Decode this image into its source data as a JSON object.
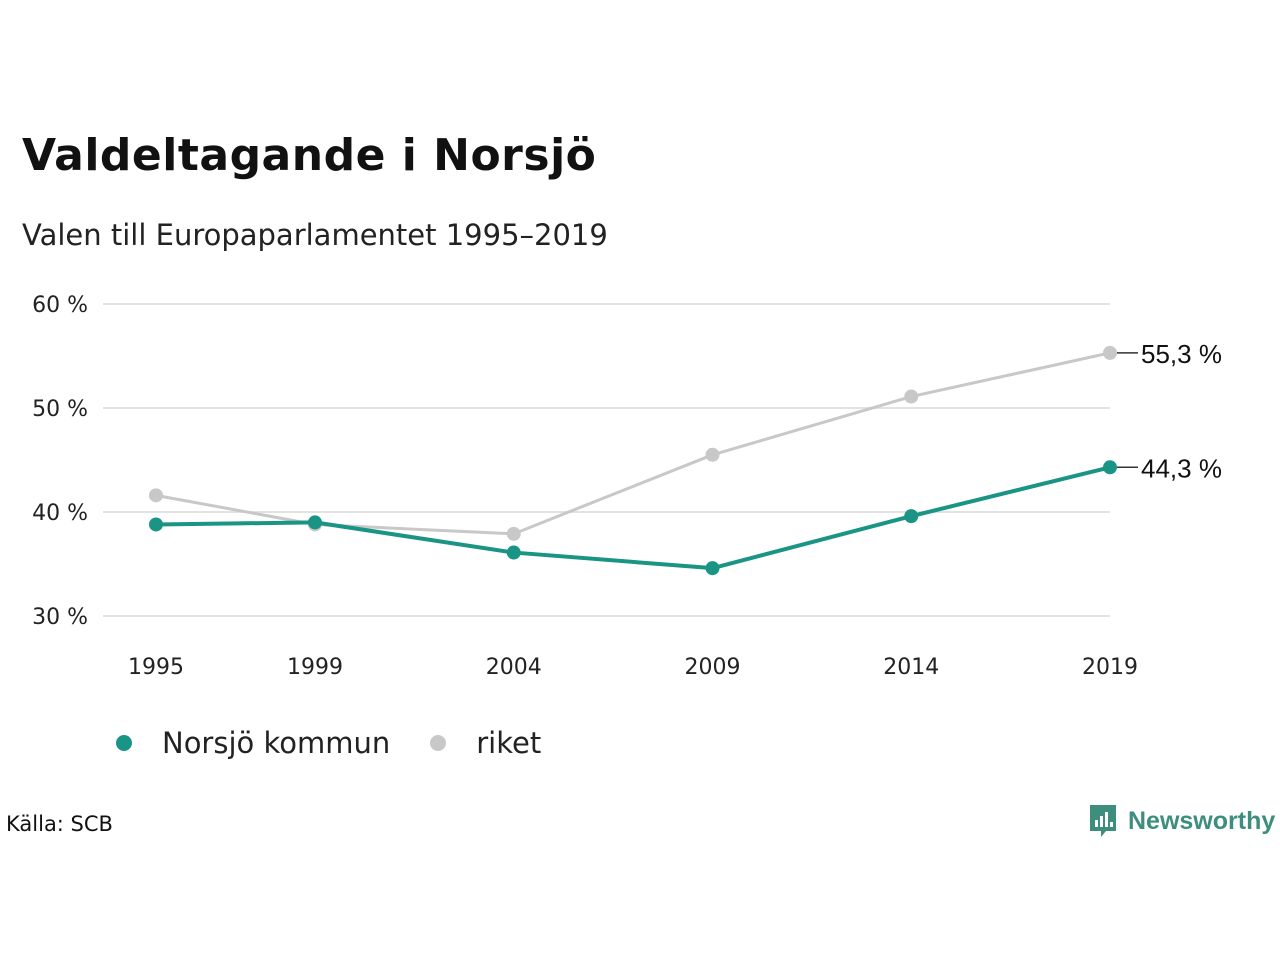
{
  "title": "Valdeltagande i Norsjö",
  "subtitle": "Valen till Europaparlamentet 1995–2019",
  "source": "Källa: SCB",
  "brand": {
    "name": "Newsworthy",
    "icon": "newsworthy-logo-icon",
    "color": "#3e8e7e"
  },
  "chart_data": {
    "type": "line",
    "x": [
      "1995",
      "1999",
      "2004",
      "2009",
      "2014",
      "2019"
    ],
    "yticks": [
      "30 %",
      "40 %",
      "50 %",
      "60 %"
    ],
    "ylim": [
      30,
      60
    ],
    "grid": true,
    "legend_position": "bottom-left",
    "series": [
      {
        "name": "Norsjö kommun",
        "color": "#1a9485",
        "values": [
          38.8,
          39.0,
          36.1,
          34.6,
          39.6,
          44.3
        ],
        "end_label": "44,3 %"
      },
      {
        "name": "riket",
        "color": "#c8c8c8",
        "values": [
          41.6,
          38.8,
          37.9,
          45.5,
          51.1,
          55.3
        ],
        "end_label": "55,3 %"
      }
    ]
  }
}
